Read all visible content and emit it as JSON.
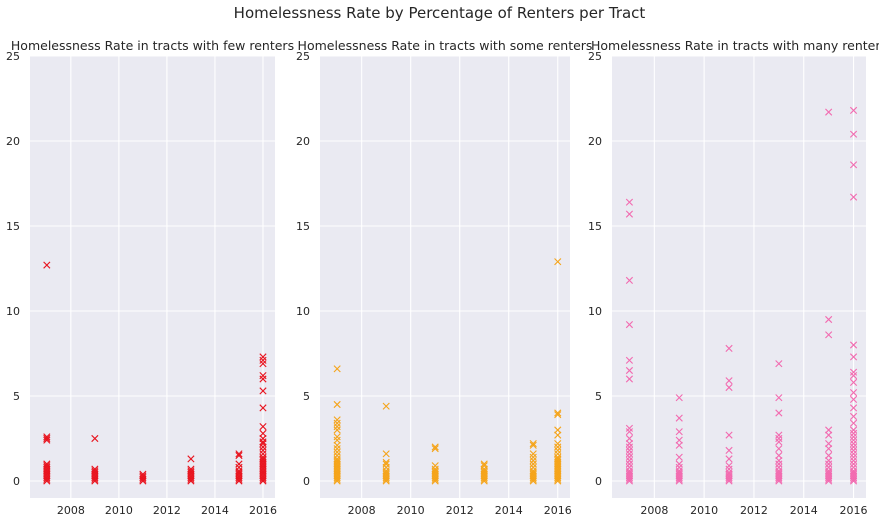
{
  "figure": {
    "suptitle": "Homelessness Rate by Percentage of Renters per Tract"
  },
  "chart_data": [
    {
      "type": "scatter",
      "title": "Homelessness Rate in tracts with few renters",
      "marker": "x",
      "color": "#e8141f",
      "xlim": [
        2006.3,
        2016.5
      ],
      "ylim": [
        -1,
        25
      ],
      "xticks": [
        2008,
        2010,
        2012,
        2014,
        2016
      ],
      "yticks": [
        0,
        5,
        10,
        15,
        20,
        25
      ],
      "grid": true,
      "points": [
        [
          2007,
          12.7
        ],
        [
          2007,
          2.6
        ],
        [
          2007,
          2.5
        ],
        [
          2007,
          2.4
        ],
        [
          2007,
          1.0
        ],
        [
          2007,
          0.9
        ],
        [
          2007,
          0.8
        ],
        [
          2007,
          0.7
        ],
        [
          2007,
          0.6
        ],
        [
          2007,
          0.5
        ],
        [
          2007,
          0.4
        ],
        [
          2007,
          0.3
        ],
        [
          2007,
          0.2
        ],
        [
          2007,
          0.1
        ],
        [
          2007,
          0.0
        ],
        [
          2009,
          2.5
        ],
        [
          2009,
          0.7
        ],
        [
          2009,
          0.6
        ],
        [
          2009,
          0.5
        ],
        [
          2009,
          0.4
        ],
        [
          2009,
          0.3
        ],
        [
          2009,
          0.2
        ],
        [
          2009,
          0.1
        ],
        [
          2009,
          0.0
        ],
        [
          2011,
          0.4
        ],
        [
          2011,
          0.3
        ],
        [
          2011,
          0.2
        ],
        [
          2011,
          0.1
        ],
        [
          2011,
          0.0
        ],
        [
          2013,
          1.3
        ],
        [
          2013,
          0.7
        ],
        [
          2013,
          0.6
        ],
        [
          2013,
          0.5
        ],
        [
          2013,
          0.4
        ],
        [
          2013,
          0.3
        ],
        [
          2013,
          0.2
        ],
        [
          2013,
          0.1
        ],
        [
          2013,
          0.0
        ],
        [
          2015,
          1.6
        ],
        [
          2015,
          1.5
        ],
        [
          2015,
          1.0
        ],
        [
          2015,
          0.8
        ],
        [
          2015,
          0.6
        ],
        [
          2015,
          0.5
        ],
        [
          2015,
          0.4
        ],
        [
          2015,
          0.3
        ],
        [
          2015,
          0.2
        ],
        [
          2015,
          0.1
        ],
        [
          2015,
          0.0
        ],
        [
          2016,
          7.3
        ],
        [
          2016,
          7.1
        ],
        [
          2016,
          6.9
        ],
        [
          2016,
          6.2
        ],
        [
          2016,
          6.0
        ],
        [
          2016,
          5.3
        ],
        [
          2016,
          4.3
        ],
        [
          2016,
          3.2
        ],
        [
          2016,
          2.8
        ],
        [
          2016,
          2.5
        ],
        [
          2016,
          2.3
        ],
        [
          2016,
          2.2
        ],
        [
          2016,
          2.0
        ],
        [
          2016,
          1.8
        ],
        [
          2016,
          1.6
        ],
        [
          2016,
          1.4
        ],
        [
          2016,
          1.3
        ],
        [
          2016,
          1.2
        ],
        [
          2016,
          1.1
        ],
        [
          2016,
          1.0
        ],
        [
          2016,
          0.9
        ],
        [
          2016,
          0.8
        ],
        [
          2016,
          0.7
        ],
        [
          2016,
          0.6
        ],
        [
          2016,
          0.5
        ],
        [
          2016,
          0.4
        ],
        [
          2016,
          0.3
        ],
        [
          2016,
          0.2
        ],
        [
          2016,
          0.1
        ],
        [
          2016,
          0.0
        ]
      ]
    },
    {
      "type": "scatter",
      "title": "Homelessness Rate in tracts with some renters",
      "marker": "x",
      "color": "#f5a41a",
      "xlim": [
        2006.3,
        2016.5
      ],
      "ylim": [
        -1,
        25
      ],
      "xticks": [
        2008,
        2010,
        2012,
        2014,
        2016
      ],
      "yticks": [
        0,
        5,
        10,
        15,
        20,
        25
      ],
      "grid": true,
      "points": [
        [
          2007,
          6.6
        ],
        [
          2007,
          4.5
        ],
        [
          2007,
          3.6
        ],
        [
          2007,
          3.4
        ],
        [
          2007,
          3.2
        ],
        [
          2007,
          3.0
        ],
        [
          2007,
          2.6
        ],
        [
          2007,
          2.4
        ],
        [
          2007,
          2.1
        ],
        [
          2007,
          1.9
        ],
        [
          2007,
          1.7
        ],
        [
          2007,
          1.5
        ],
        [
          2007,
          1.3
        ],
        [
          2007,
          1.2
        ],
        [
          2007,
          1.1
        ],
        [
          2007,
          1.0
        ],
        [
          2007,
          0.9
        ],
        [
          2007,
          0.8
        ],
        [
          2007,
          0.7
        ],
        [
          2007,
          0.6
        ],
        [
          2007,
          0.5
        ],
        [
          2007,
          0.4
        ],
        [
          2007,
          0.3
        ],
        [
          2007,
          0.2
        ],
        [
          2007,
          0.1
        ],
        [
          2007,
          0.0
        ],
        [
          2009,
          4.4
        ],
        [
          2009,
          1.6
        ],
        [
          2009,
          1.1
        ],
        [
          2009,
          1.0
        ],
        [
          2009,
          0.8
        ],
        [
          2009,
          0.6
        ],
        [
          2009,
          0.5
        ],
        [
          2009,
          0.4
        ],
        [
          2009,
          0.3
        ],
        [
          2009,
          0.2
        ],
        [
          2009,
          0.1
        ],
        [
          2009,
          0.0
        ],
        [
          2011,
          2.0
        ],
        [
          2011,
          1.9
        ],
        [
          2011,
          0.9
        ],
        [
          2011,
          0.7
        ],
        [
          2011,
          0.6
        ],
        [
          2011,
          0.5
        ],
        [
          2011,
          0.4
        ],
        [
          2011,
          0.3
        ],
        [
          2011,
          0.2
        ],
        [
          2011,
          0.1
        ],
        [
          2011,
          0.0
        ],
        [
          2013,
          1.0
        ],
        [
          2013,
          0.9
        ],
        [
          2013,
          0.7
        ],
        [
          2013,
          0.6
        ],
        [
          2013,
          0.5
        ],
        [
          2013,
          0.4
        ],
        [
          2013,
          0.3
        ],
        [
          2013,
          0.2
        ],
        [
          2013,
          0.1
        ],
        [
          2013,
          0.0
        ],
        [
          2015,
          2.2
        ],
        [
          2015,
          2.1
        ],
        [
          2015,
          1.6
        ],
        [
          2015,
          1.4
        ],
        [
          2015,
          1.2
        ],
        [
          2015,
          1.0
        ],
        [
          2015,
          0.8
        ],
        [
          2015,
          0.6
        ],
        [
          2015,
          0.5
        ],
        [
          2015,
          0.4
        ],
        [
          2015,
          0.3
        ],
        [
          2015,
          0.2
        ],
        [
          2015,
          0.1
        ],
        [
          2015,
          0.0
        ],
        [
          2016,
          12.9
        ],
        [
          2016,
          4.0
        ],
        [
          2016,
          3.9
        ],
        [
          2016,
          3.0
        ],
        [
          2016,
          2.7
        ],
        [
          2016,
          2.2
        ],
        [
          2016,
          2.0
        ],
        [
          2016,
          1.8
        ],
        [
          2016,
          1.6
        ],
        [
          2016,
          1.4
        ],
        [
          2016,
          1.3
        ],
        [
          2016,
          1.2
        ],
        [
          2016,
          1.1
        ],
        [
          2016,
          1.0
        ],
        [
          2016,
          0.9
        ],
        [
          2016,
          0.8
        ],
        [
          2016,
          0.7
        ],
        [
          2016,
          0.6
        ],
        [
          2016,
          0.5
        ],
        [
          2016,
          0.4
        ],
        [
          2016,
          0.3
        ],
        [
          2016,
          0.2
        ],
        [
          2016,
          0.1
        ],
        [
          2016,
          0.0
        ]
      ]
    },
    {
      "type": "scatter",
      "title": "Homelessness Rate in tracts with many renters",
      "marker": "x",
      "color": "#f26bb0",
      "xlim": [
        2006.3,
        2016.5
      ],
      "ylim": [
        -1,
        25
      ],
      "xticks": [
        2008,
        2010,
        2012,
        2014,
        2016
      ],
      "yticks": [
        0,
        5,
        10,
        15,
        20,
        25
      ],
      "grid": true,
      "points": [
        [
          2007,
          16.4
        ],
        [
          2007,
          15.7
        ],
        [
          2007,
          11.8
        ],
        [
          2007,
          9.2
        ],
        [
          2007,
          7.1
        ],
        [
          2007,
          6.5
        ],
        [
          2007,
          6.0
        ],
        [
          2007,
          3.1
        ],
        [
          2007,
          2.9
        ],
        [
          2007,
          2.5
        ],
        [
          2007,
          2.2
        ],
        [
          2007,
          2.0
        ],
        [
          2007,
          1.8
        ],
        [
          2007,
          1.6
        ],
        [
          2007,
          1.4
        ],
        [
          2007,
          1.2
        ],
        [
          2007,
          1.0
        ],
        [
          2007,
          0.8
        ],
        [
          2007,
          0.6
        ],
        [
          2007,
          0.5
        ],
        [
          2007,
          0.4
        ],
        [
          2007,
          0.3
        ],
        [
          2007,
          0.2
        ],
        [
          2007,
          0.1
        ],
        [
          2007,
          0.0
        ],
        [
          2009,
          4.9
        ],
        [
          2009,
          3.7
        ],
        [
          2009,
          2.9
        ],
        [
          2009,
          2.4
        ],
        [
          2009,
          2.1
        ],
        [
          2009,
          1.4
        ],
        [
          2009,
          1.0
        ],
        [
          2009,
          0.8
        ],
        [
          2009,
          0.6
        ],
        [
          2009,
          0.5
        ],
        [
          2009,
          0.4
        ],
        [
          2009,
          0.3
        ],
        [
          2009,
          0.2
        ],
        [
          2009,
          0.1
        ],
        [
          2009,
          0.0
        ],
        [
          2011,
          7.8
        ],
        [
          2011,
          5.9
        ],
        [
          2011,
          5.5
        ],
        [
          2011,
          2.7
        ],
        [
          2011,
          1.8
        ],
        [
          2011,
          1.3
        ],
        [
          2011,
          0.9
        ],
        [
          2011,
          0.7
        ],
        [
          2011,
          0.5
        ],
        [
          2011,
          0.4
        ],
        [
          2011,
          0.3
        ],
        [
          2011,
          0.2
        ],
        [
          2011,
          0.1
        ],
        [
          2011,
          0.0
        ],
        [
          2013,
          6.9
        ],
        [
          2013,
          4.9
        ],
        [
          2013,
          4.0
        ],
        [
          2013,
          2.7
        ],
        [
          2013,
          2.5
        ],
        [
          2013,
          2.3
        ],
        [
          2013,
          1.9
        ],
        [
          2013,
          1.5
        ],
        [
          2013,
          1.2
        ],
        [
          2013,
          1.0
        ],
        [
          2013,
          0.8
        ],
        [
          2013,
          0.6
        ],
        [
          2013,
          0.5
        ],
        [
          2013,
          0.4
        ],
        [
          2013,
          0.3
        ],
        [
          2013,
          0.2
        ],
        [
          2013,
          0.1
        ],
        [
          2013,
          0.0
        ],
        [
          2015,
          21.7
        ],
        [
          2015,
          9.5
        ],
        [
          2015,
          8.6
        ],
        [
          2015,
          3.0
        ],
        [
          2015,
          2.7
        ],
        [
          2015,
          2.2
        ],
        [
          2015,
          1.9
        ],
        [
          2015,
          1.5
        ],
        [
          2015,
          1.2
        ],
        [
          2015,
          1.0
        ],
        [
          2015,
          0.8
        ],
        [
          2015,
          0.6
        ],
        [
          2015,
          0.5
        ],
        [
          2015,
          0.4
        ],
        [
          2015,
          0.3
        ],
        [
          2015,
          0.2
        ],
        [
          2015,
          0.1
        ],
        [
          2015,
          0.0
        ],
        [
          2016,
          21.8
        ],
        [
          2016,
          20.4
        ],
        [
          2016,
          18.6
        ],
        [
          2016,
          16.7
        ],
        [
          2016,
          8.0
        ],
        [
          2016,
          7.3
        ],
        [
          2016,
          6.4
        ],
        [
          2016,
          6.2
        ],
        [
          2016,
          5.8
        ],
        [
          2016,
          5.2
        ],
        [
          2016,
          4.8
        ],
        [
          2016,
          4.3
        ],
        [
          2016,
          3.8
        ],
        [
          2016,
          3.4
        ],
        [
          2016,
          3.0
        ],
        [
          2016,
          2.8
        ],
        [
          2016,
          2.6
        ],
        [
          2016,
          2.4
        ],
        [
          2016,
          2.2
        ],
        [
          2016,
          2.0
        ],
        [
          2016,
          1.8
        ],
        [
          2016,
          1.6
        ],
        [
          2016,
          1.4
        ],
        [
          2016,
          1.2
        ],
        [
          2016,
          1.0
        ],
        [
          2016,
          0.8
        ],
        [
          2016,
          0.6
        ],
        [
          2016,
          0.5
        ],
        [
          2016,
          0.4
        ],
        [
          2016,
          0.3
        ],
        [
          2016,
          0.2
        ],
        [
          2016,
          0.1
        ],
        [
          2016,
          0.0
        ]
      ]
    }
  ]
}
